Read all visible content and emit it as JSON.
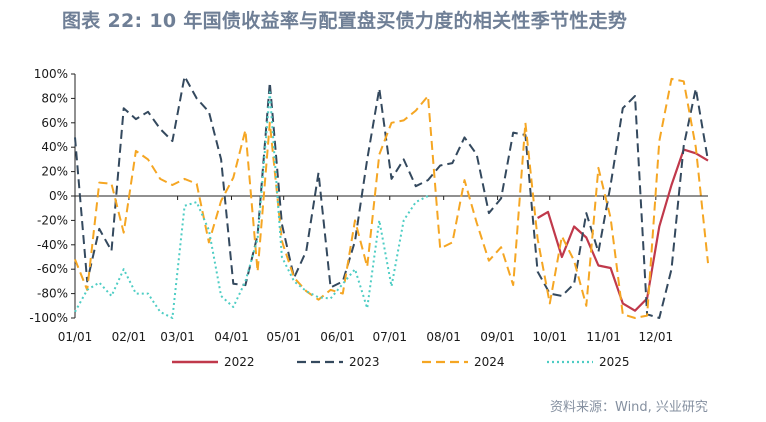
{
  "title": "图表 22: 10 年国债收益率与配置盘买债力度的相关性季节性走势",
  "source": "资料来源：Wind, 兴业研究",
  "chart_data": {
    "type": "line",
    "title": "图表 22: 10 年国债收益率与配置盘买债力度的相关性季节性走势",
    "x_range": [
      "01/01",
      "12/31"
    ],
    "x_ticks": [
      "01/01",
      "02/01",
      "03/01",
      "04/01",
      "05/01",
      "06/01",
      "07/01",
      "08/01",
      "09/01",
      "10/01",
      "11/01",
      "12/01"
    ],
    "ylim": [
      -100,
      100
    ],
    "y_ticks": [
      100,
      80,
      60,
      40,
      20,
      0,
      -20,
      -40,
      -60,
      -80,
      -100
    ],
    "y_tick_labels": [
      "100%",
      "80%",
      "60%",
      "40%",
      "20%",
      "0%",
      "-20%",
      "-40%",
      "-60%",
      "-80%",
      "-100%"
    ],
    "y_unit": "%",
    "legend_position": "bottom",
    "series": [
      {
        "name": "2022",
        "color": "#c0394b",
        "style": "solid",
        "points": [
          [
            "09/24",
            -18
          ],
          [
            "09/30",
            -13
          ],
          [
            "10/08",
            -50
          ],
          [
            "10/15",
            -25
          ],
          [
            "10/22",
            -34
          ],
          [
            "10/29",
            -57
          ],
          [
            "11/05",
            -59
          ],
          [
            "11/12",
            -88
          ],
          [
            "11/19",
            -94
          ],
          [
            "11/26",
            -84
          ],
          [
            "12/03",
            -25
          ],
          [
            "12/10",
            9
          ],
          [
            "12/17",
            38
          ],
          [
            "12/24",
            35
          ],
          [
            "12/31",
            29
          ]
        ]
      },
      {
        "name": "2023",
        "color": "#34495e",
        "style": "dashed",
        "points": [
          [
            "01/01",
            48
          ],
          [
            "01/08",
            -70
          ],
          [
            "01/15",
            -27
          ],
          [
            "01/22",
            -45
          ],
          [
            "01/29",
            72
          ],
          [
            "02/05",
            63
          ],
          [
            "02/12",
            69
          ],
          [
            "02/19",
            55
          ],
          [
            "02/26",
            45
          ],
          [
            "03/05",
            98
          ],
          [
            "03/12",
            80
          ],
          [
            "03/19",
            69
          ],
          [
            "03/26",
            30
          ],
          [
            "04/02",
            -72
          ],
          [
            "04/09",
            -73
          ],
          [
            "04/16",
            -32
          ],
          [
            "04/23",
            93
          ],
          [
            "04/30",
            -23
          ],
          [
            "05/07",
            -67
          ],
          [
            "05/14",
            -45
          ],
          [
            "05/21",
            19
          ],
          [
            "05/28",
            -75
          ],
          [
            "06/04",
            -70
          ],
          [
            "06/11",
            -37
          ],
          [
            "06/18",
            30
          ],
          [
            "06/25",
            88
          ],
          [
            "07/02",
            14
          ],
          [
            "07/09",
            30
          ],
          [
            "07/16",
            8
          ],
          [
            "07/23",
            13
          ],
          [
            "07/30",
            25
          ],
          [
            "08/06",
            27
          ],
          [
            "08/13",
            48
          ],
          [
            "08/20",
            34
          ],
          [
            "08/27",
            -14
          ],
          [
            "09/03",
            -2
          ],
          [
            "09/10",
            52
          ],
          [
            "09/17",
            50
          ],
          [
            "09/24",
            -62
          ],
          [
            "10/01",
            -80
          ],
          [
            "10/08",
            -82
          ],
          [
            "10/15",
            -72
          ],
          [
            "10/22",
            -14
          ],
          [
            "10/29",
            -46
          ],
          [
            "11/05",
            9
          ],
          [
            "11/12",
            72
          ],
          [
            "11/19",
            82
          ],
          [
            "11/26",
            -97
          ],
          [
            "12/03",
            -100
          ],
          [
            "12/10",
            -60
          ],
          [
            "12/17",
            41
          ],
          [
            "12/24",
            88
          ],
          [
            "12/31",
            29
          ]
        ]
      },
      {
        "name": "2024",
        "color": "#f5a623",
        "style": "dashed",
        "points": [
          [
            "01/01",
            -52
          ],
          [
            "01/08",
            -77
          ],
          [
            "01/15",
            11
          ],
          [
            "01/22",
            10
          ],
          [
            "01/29",
            -30
          ],
          [
            "02/05",
            37
          ],
          [
            "02/12",
            30
          ],
          [
            "02/19",
            14
          ],
          [
            "02/26",
            9
          ],
          [
            "03/05",
            14
          ],
          [
            "03/12",
            10
          ],
          [
            "03/19",
            -38
          ],
          [
            "03/26",
            -4
          ],
          [
            "04/02",
            15
          ],
          [
            "04/09",
            54
          ],
          [
            "04/16",
            -62
          ],
          [
            "04/23",
            60
          ],
          [
            "04/30",
            -37
          ],
          [
            "05/07",
            -67
          ],
          [
            "05/14",
            -78
          ],
          [
            "05/21",
            -85
          ],
          [
            "05/28",
            -77
          ],
          [
            "06/04",
            -80
          ],
          [
            "06/11",
            -20
          ],
          [
            "06/18",
            -58
          ],
          [
            "06/25",
            34
          ],
          [
            "07/02",
            60
          ],
          [
            "07/09",
            62
          ],
          [
            "07/16",
            70
          ],
          [
            "07/23",
            82
          ],
          [
            "07/30",
            -43
          ],
          [
            "08/06",
            -38
          ],
          [
            "08/13",
            13
          ],
          [
            "08/20",
            -22
          ],
          [
            "08/27",
            -53
          ],
          [
            "09/03",
            -42
          ],
          [
            "09/10",
            -73
          ],
          [
            "09/17",
            60
          ],
          [
            "09/24",
            -35
          ],
          [
            "10/01",
            -88
          ],
          [
            "10/08",
            -33
          ],
          [
            "10/15",
            -53
          ],
          [
            "10/22",
            -90
          ],
          [
            "10/29",
            23
          ],
          [
            "11/05",
            -18
          ],
          [
            "11/12",
            -97
          ],
          [
            "11/19",
            -100
          ],
          [
            "11/26",
            -98
          ],
          [
            "12/03",
            45
          ],
          [
            "12/10",
            96
          ],
          [
            "12/17",
            94
          ],
          [
            "12/24",
            40
          ],
          [
            "12/31",
            -55
          ]
        ]
      },
      {
        "name": "2025",
        "color": "#4ecdc4",
        "style": "dotted",
        "points": [
          [
            "01/01",
            -95
          ],
          [
            "01/08",
            -77
          ],
          [
            "01/15",
            -71
          ],
          [
            "01/22",
            -82
          ],
          [
            "01/29",
            -60
          ],
          [
            "02/05",
            -80
          ],
          [
            "02/12",
            -80
          ],
          [
            "02/19",
            -95
          ],
          [
            "02/26",
            -100
          ],
          [
            "03/05",
            -8
          ],
          [
            "03/12",
            -5
          ],
          [
            "03/19",
            -28
          ],
          [
            "03/26",
            -82
          ],
          [
            "04/02",
            -91
          ],
          [
            "04/09",
            -70
          ],
          [
            "04/16",
            -35
          ],
          [
            "04/23",
            85
          ],
          [
            "04/30",
            -50
          ],
          [
            "05/07",
            -70
          ],
          [
            "05/14",
            -78
          ],
          [
            "05/21",
            -83
          ],
          [
            "05/28",
            -84
          ],
          [
            "06/04",
            -72
          ],
          [
            "06/11",
            -60
          ],
          [
            "06/18",
            -92
          ],
          [
            "06/25",
            -20
          ],
          [
            "07/02",
            -74
          ],
          [
            "07/09",
            -20
          ],
          [
            "07/16",
            -5
          ],
          [
            "07/23",
            0
          ]
        ]
      }
    ]
  }
}
